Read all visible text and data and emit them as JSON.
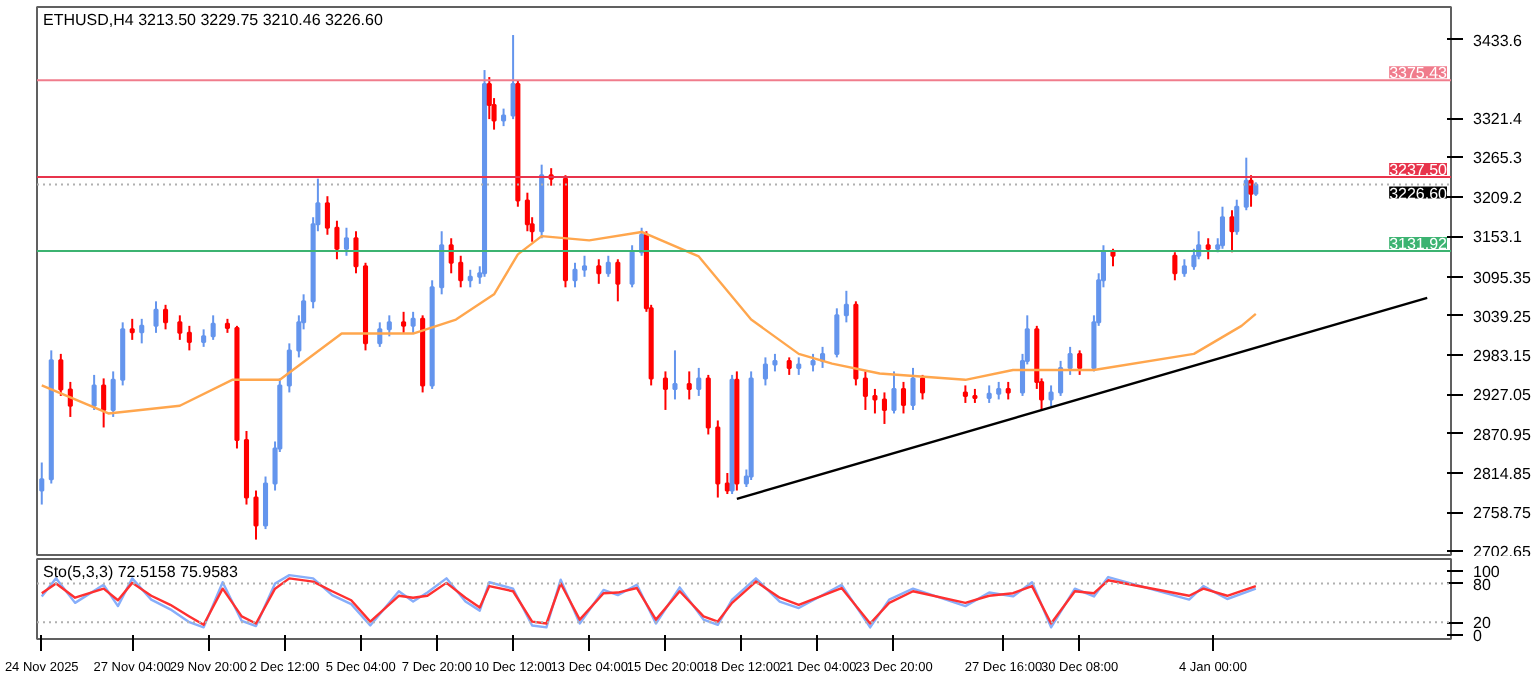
{
  "chart_data": [
    {
      "type": "candlestick",
      "title": "ETHUSD,H4 3213.50 3229.75 3210.46 3226.60",
      "x": [
        "2025-11-24T00:00",
        "2025-11-24T08:00",
        "2025-11-24T16:00",
        "2025-11-25T00:00",
        "2025-11-25T20:00",
        "2025-11-26T04:00",
        "2025-11-26T12:00",
        "2025-11-26T20:00",
        "2025-11-27T04:00",
        "2025-11-27T12:00",
        "2025-11-28T00:00",
        "2025-11-28T08:00",
        "2025-11-28T20:00",
        "2025-11-29T04:00",
        "2025-11-29T16:00",
        "2025-11-30T00:00",
        "2025-11-30T12:00",
        "2025-11-30T20:00",
        "2025-12-01T04:00",
        "2025-12-01T12:00",
        "2025-12-01T20:00",
        "2025-12-02T04:00",
        "2025-12-02T08:00",
        "2025-12-02T16:00",
        "2025-12-03T00:00",
        "2025-12-03T04:00",
        "2025-12-03T12:00",
        "2025-12-03T16:00",
        "2025-12-04T00:00",
        "2025-12-04T08:00",
        "2025-12-04T16:00",
        "2025-12-05T00:00",
        "2025-12-05T08:00",
        "2025-12-05T20:00",
        "2025-12-06T04:00",
        "2025-12-06T16:00",
        "2025-12-07T00:00",
        "2025-12-07T08:00",
        "2025-12-07T16:00",
        "2025-12-08T00:00",
        "2025-12-08T08:00",
        "2025-12-08T16:00",
        "2025-12-09T00:00",
        "2025-12-09T08:00",
        "2025-12-09T12:00",
        "2025-12-09T16:00",
        "2025-12-09T20:00",
        "2025-12-10T04:00",
        "2025-12-10T12:00",
        "2025-12-10T16:00",
        "2025-12-11T00:00",
        "2025-12-11T04:00",
        "2025-12-11T12:00",
        "2025-12-11T20:00",
        "2025-12-12T08:00",
        "2025-12-12T16:00",
        "2025-12-13T00:00",
        "2025-12-13T12:00",
        "2025-12-13T20:00",
        "2025-12-14T04:00",
        "2025-12-14T16:00",
        "2025-12-15T00:00",
        "2025-12-15T04:00",
        "2025-12-15T08:00",
        "2025-12-15T20:00",
        "2025-12-16T04:00",
        "2025-12-16T16:00",
        "2025-12-17T00:00",
        "2025-12-17T08:00",
        "2025-12-17T16:00",
        "2025-12-18T00:00",
        "2025-12-18T04:00",
        "2025-12-18T08:00",
        "2025-12-18T16:00",
        "2025-12-18T20:00",
        "2025-12-19T08:00",
        "2025-12-19T16:00",
        "2025-12-20T04:00",
        "2025-12-20T12:00",
        "2025-12-21T00:00",
        "2025-12-21T08:00",
        "2025-12-21T20:00",
        "2025-12-22T04:00",
        "2025-12-22T12:00",
        "2025-12-22T20:00",
        "2025-12-23T04:00",
        "2025-12-23T12:00",
        "2025-12-23T20:00",
        "2025-12-24T04:00",
        "2025-12-24T12:00",
        "2025-12-24T20:00",
        "2025-12-26T08:00",
        "2025-12-26T16:00",
        "2025-12-27T04:00",
        "2025-12-27T12:00",
        "2025-12-27T20:00",
        "2025-12-28T08:00",
        "2025-12-28T12:00",
        "2025-12-28T20:00",
        "2025-12-29T00:00",
        "2025-12-29T08:00",
        "2025-12-29T16:00",
        "2025-12-30T00:00",
        "2025-12-30T08:00",
        "2025-12-30T20:00",
        "2025-12-31T00:00",
        "2025-12-31T04:00",
        "2025-12-31T12:00",
        "2026-01-02T16:00",
        "2026-01-03T00:00",
        "2026-01-03T08:00",
        "2026-01-03T12:00",
        "2026-01-03T20:00",
        "2026-01-04T04:00",
        "2026-01-04T08:00",
        "2026-01-04T16:00",
        "2026-01-04T20:00",
        "2026-01-05T04:00",
        "2026-01-05T08:00",
        "2026-01-05T12:00"
      ],
      "ohlc": [
        [
          2790,
          2830,
          2770,
          2806
        ],
        [
          2806,
          2990,
          2800,
          2976
        ],
        [
          2976,
          2985,
          2925,
          2934
        ],
        [
          2934,
          2945,
          2895,
          2911
        ],
        [
          2911,
          2955,
          2905,
          2940
        ],
        [
          2940,
          2950,
          2880,
          2905
        ],
        [
          2905,
          2960,
          2895,
          2948
        ],
        [
          2948,
          3030,
          2940,
          3020
        ],
        [
          3020,
          3035,
          3005,
          3016
        ],
        [
          3016,
          3035,
          3000,
          3025
        ],
        [
          3025,
          3060,
          3015,
          3048
        ],
        [
          3048,
          3055,
          3020,
          3030
        ],
        [
          3030,
          3040,
          3005,
          3015
        ],
        [
          3015,
          3025,
          2990,
          3002
        ],
        [
          3002,
          3020,
          2995,
          3010
        ],
        [
          3010,
          3040,
          3005,
          3028
        ],
        [
          3028,
          3035,
          3015,
          3022
        ],
        [
          3022,
          3025,
          2850,
          2862
        ],
        [
          2862,
          2875,
          2770,
          2780
        ],
        [
          2780,
          2790,
          2720,
          2740
        ],
        [
          2740,
          2810,
          2735,
          2800
        ],
        [
          2800,
          2860,
          2790,
          2850
        ],
        [
          2850,
          2950,
          2845,
          2940
        ],
        [
          2940,
          3000,
          2930,
          2990
        ],
        [
          2990,
          3040,
          2980,
          3030
        ],
        [
          3030,
          3070,
          3020,
          3060
        ],
        [
          3060,
          3180,
          3050,
          3170
        ],
        [
          3170,
          3235,
          3160,
          3200
        ],
        [
          3200,
          3210,
          3155,
          3165
        ],
        [
          3165,
          3175,
          3120,
          3135
        ],
        [
          3135,
          3165,
          3125,
          3150
        ],
        [
          3150,
          3160,
          3100,
          3110
        ],
        [
          3110,
          3115,
          2990,
          3000
        ],
        [
          3000,
          3030,
          2995,
          3020
        ],
        [
          3020,
          3040,
          3010,
          3030
        ],
        [
          3030,
          3045,
          3015,
          3025
        ],
        [
          3025,
          3045,
          3015,
          3035
        ],
        [
          3035,
          3040,
          2930,
          2940
        ],
        [
          2940,
          3090,
          2935,
          3080
        ],
        [
          3080,
          3160,
          3070,
          3140
        ],
        [
          3140,
          3150,
          3100,
          3115
        ],
        [
          3115,
          3125,
          3080,
          3090
        ],
        [
          3090,
          3105,
          3080,
          3095
        ],
        [
          3095,
          3110,
          3085,
          3100
        ],
        [
          3100,
          3390,
          3095,
          3370
        ],
        [
          3370,
          3380,
          3320,
          3340
        ],
        [
          3340,
          3350,
          3305,
          3318
        ],
        [
          3318,
          3335,
          3310,
          3325
        ],
        [
          3325,
          3440,
          3320,
          3370
        ],
        [
          3370,
          3375,
          3195,
          3204
        ],
        [
          3204,
          3215,
          3160,
          3170
        ],
        [
          3170,
          3180,
          3145,
          3160
        ],
        [
          3160,
          3255,
          3150,
          3240
        ],
        [
          3240,
          3250,
          3225,
          3235
        ],
        [
          3235,
          3240,
          3080,
          3090
        ],
        [
          3090,
          3115,
          3080,
          3105
        ],
        [
          3105,
          3125,
          3095,
          3110
        ],
        [
          3110,
          3120,
          3085,
          3100
        ],
        [
          3100,
          3125,
          3095,
          3115
        ],
        [
          3115,
          3120,
          3060,
          3085
        ],
        [
          3085,
          3140,
          3080,
          3130
        ],
        [
          3130,
          3165,
          3125,
          3155
        ],
        [
          3155,
          3160,
          3045,
          3050
        ],
        [
          3050,
          3055,
          2940,
          2950
        ],
        [
          2950,
          2960,
          2905,
          2935
        ],
        [
          2935,
          2990,
          2920,
          2942
        ],
        [
          2942,
          2960,
          2920,
          2935
        ],
        [
          2935,
          2965,
          2925,
          2950
        ],
        [
          2950,
          2955,
          2870,
          2880
        ],
        [
          2880,
          2890,
          2780,
          2800
        ],
        [
          2800,
          2815,
          2785,
          2790
        ],
        [
          2790,
          2955,
          2785,
          2948
        ],
        [
          2948,
          2960,
          2790,
          2800
        ],
        [
          2800,
          2820,
          2795,
          2810
        ],
        [
          2810,
          2960,
          2805,
          2950
        ],
        [
          2950,
          2980,
          2940,
          2970
        ],
        [
          2970,
          2985,
          2960,
          2975
        ],
        [
          2975,
          2980,
          2955,
          2965
        ],
        [
          2965,
          2980,
          2955,
          2970
        ],
        [
          2970,
          2985,
          2960,
          2975
        ],
        [
          2975,
          2995,
          2965,
          2985
        ],
        [
          2985,
          3050,
          2980,
          3040
        ],
        [
          3040,
          3075,
          3030,
          3055
        ],
        [
          3055,
          3060,
          2940,
          2950
        ],
        [
          2950,
          2960,
          2905,
          2925
        ],
        [
          2925,
          2935,
          2900,
          2920
        ],
        [
          2920,
          2930,
          2885,
          2905
        ],
        [
          2905,
          2960,
          2900,
          2935
        ],
        [
          2935,
          2945,
          2900,
          2912
        ],
        [
          2912,
          2965,
          2905,
          2950
        ],
        [
          2950,
          2955,
          2920,
          2930
        ],
        [
          2930,
          2940,
          2915,
          2925
        ],
        [
          2925,
          2935,
          2915,
          2922
        ],
        [
          2922,
          2940,
          2915,
          2928
        ],
        [
          2928,
          2945,
          2920,
          2935
        ],
        [
          2935,
          2945,
          2920,
          2930
        ],
        [
          2930,
          2985,
          2925,
          2975
        ],
        [
          2975,
          3040,
          2970,
          3020
        ],
        [
          3020,
          3025,
          2935,
          2945
        ],
        [
          2945,
          2950,
          2905,
          2920
        ],
        [
          2920,
          2940,
          2910,
          2930
        ],
        [
          2930,
          2975,
          2925,
          2965
        ],
        [
          2965,
          2995,
          2955,
          2985
        ],
        [
          2985,
          2990,
          2955,
          2965
        ],
        [
          2965,
          3040,
          2960,
          3030
        ],
        [
          3030,
          3100,
          3025,
          3090
        ],
        [
          3090,
          3140,
          3080,
          3130
        ],
        [
          3130,
          3135,
          3110,
          3125
        ],
        [
          3125,
          3130,
          3090,
          3100
        ],
        [
          3100,
          3120,
          3095,
          3110
        ],
        [
          3110,
          3135,
          3105,
          3125
        ],
        [
          3125,
          3160,
          3120,
          3140
        ],
        [
          3140,
          3150,
          3120,
          3135
        ],
        [
          3135,
          3150,
          3130,
          3140
        ],
        [
          3140,
          3195,
          3135,
          3180
        ],
        [
          3180,
          3190,
          3130,
          3160
        ],
        [
          3160,
          3205,
          3155,
          3195
        ],
        [
          3195,
          3265,
          3190,
          3232
        ],
        [
          3232,
          3240,
          3195,
          3213.5
        ],
        [
          3213.5,
          3229.75,
          3210.46,
          3226.6
        ]
      ],
      "series": [
        {
          "type": "line",
          "color": "#ffa64d",
          "x": [
            "2025-11-24T00:00",
            "2025-11-26T08:00",
            "2025-11-28T20:00",
            "2025-11-30T16:00",
            "2025-12-02T08:00",
            "2025-12-04T12:00",
            "2025-12-07T00:00",
            "2025-12-08T12:00",
            "2025-12-09T20:00",
            "2025-12-10T16:00",
            "2025-12-11T12:00",
            "2025-12-13T04:00",
            "2025-12-15T00:00",
            "2025-12-17T00:00",
            "2025-12-18T20:00",
            "2025-12-20T12:00",
            "2025-12-21T16:00",
            "2025-12-23T08:00",
            "2025-12-26T08:00",
            "2025-12-28T00:00",
            "2025-12-30T20:00",
            "2026-01-03T08:00",
            "2026-01-05T00:00",
            "2026-01-05T12:00"
          ],
          "values": [
            2940,
            2900,
            2911,
            2948,
            2948,
            3014,
            3014,
            3034,
            3070,
            3127,
            3153,
            3147,
            3159,
            3124,
            3034,
            2985,
            2971,
            2957,
            2948,
            2962,
            2962,
            2985,
            3025,
            3042
          ]
        },
        {
          "type": "line",
          "color": "#000000",
          "x": [
            "2025-12-18T08:00",
            "2026-01-11T12:00"
          ],
          "values": [
            2778,
            3065
          ]
        }
      ],
      "ref_lines": [
        {
          "axis": "y",
          "value": 3375.43,
          "label": "3375.43",
          "color": "#f07c8c"
        },
        {
          "axis": "y",
          "value": 3237.5,
          "label": "3237.50",
          "color": "#e8344c"
        },
        {
          "axis": "y",
          "value": 3226.6,
          "label": "3226.60",
          "color": "#b0b0b0",
          "line_style": "dotted"
        },
        {
          "axis": "y",
          "value": 3131.92,
          "label": "3131.92",
          "color": "#3cb371"
        }
      ],
      "xlim": [
        "2025-11-23T20:00",
        "2026-01-12T08:00"
      ],
      "ylim": [
        2698,
        3480
      ],
      "yticks": [
        2702.65,
        2758.75,
        2814.85,
        2870.95,
        2927.05,
        2983.15,
        3039.25,
        3095.35,
        3153.1,
        3209.2,
        3265.3,
        3321.4,
        3433.6
      ],
      "tick_labels": "y",
      "grid": false
    },
    {
      "type": "line",
      "title": "Sto(5,3,3) 72.5158 75.9583",
      "x": [
        "2025-11-24T00:00",
        "2025-11-24T12:00",
        "2025-11-25T04:00",
        "2025-11-26T04:00",
        "2025-11-26T16:00",
        "2025-11-27T04:00",
        "2025-11-27T20:00",
        "2025-11-28T12:00",
        "2025-11-29T04:00",
        "2025-11-29T16:00",
        "2025-11-30T08:00",
        "2025-12-01T00:00",
        "2025-12-01T12:00",
        "2025-12-02T04:00",
        "2025-12-02T16:00",
        "2025-12-03T12:00",
        "2025-12-04T04:00",
        "2025-12-04T20:00",
        "2025-12-05T12:00",
        "2025-12-06T12:00",
        "2025-12-07T00:00",
        "2025-12-07T12:00",
        "2025-12-08T04:00",
        "2025-12-08T20:00",
        "2025-12-09T08:00",
        "2025-12-09T16:00",
        "2025-12-10T12:00",
        "2025-12-11T04:00",
        "2025-12-11T16:00",
        "2025-12-12T04:00",
        "2025-12-12T20:00",
        "2025-12-13T16:00",
        "2025-12-14T04:00",
        "2025-12-14T20:00",
        "2025-12-15T12:00",
        "2025-12-16T08:00",
        "2025-12-17T04:00",
        "2025-12-17T16:00",
        "2025-12-18T04:00",
        "2025-12-19T00:00",
        "2025-12-19T20:00",
        "2025-12-20T12:00",
        "2025-12-22T00:00",
        "2025-12-23T00:00",
        "2025-12-23T16:00",
        "2025-12-24T12:00",
        "2025-12-26T08:00",
        "2025-12-27T04:00",
        "2025-12-28T00:00",
        "2025-12-28T16:00",
        "2025-12-29T08:00",
        "2025-12-30T04:00",
        "2025-12-30T20:00",
        "2025-12-31T08:00",
        "2026-01-03T04:00",
        "2026-01-03T16:00",
        "2026-01-04T12:00",
        "2026-01-05T12:00"
      ],
      "series": [
        {
          "color": "#87aefa",
          "values": [
            60,
            88,
            50,
            78,
            45,
            88,
            55,
            40,
            20,
            12,
            82,
            22,
            14,
            80,
            93,
            88,
            62,
            48,
            15,
            68,
            52,
            66,
            88,
            52,
            38,
            82,
            72,
            15,
            12,
            86,
            18,
            70,
            62,
            78,
            18,
            74,
            24,
            16,
            55,
            88,
            52,
            42,
            78,
            12,
            55,
            72,
            45,
            66,
            60,
            82,
            12,
            72,
            60,
            90,
            55,
            76,
            56,
            72
          ]
        },
        {
          "color": "#ff3030",
          "values": [
            65,
            80,
            58,
            72,
            54,
            81,
            61,
            47,
            29,
            16,
            72,
            29,
            18,
            72,
            88,
            83,
            68,
            54,
            21,
            61,
            58,
            61,
            81,
            58,
            43,
            76,
            68,
            21,
            18,
            80,
            24,
            65,
            66,
            73,
            24,
            68,
            29,
            21,
            50,
            83,
            58,
            47,
            73,
            18,
            50,
            68,
            50,
            61,
            65,
            76,
            18,
            68,
            65,
            85,
            61,
            72,
            61,
            76
          ]
        }
      ],
      "ref_lines": [
        {
          "axis": "y",
          "value": 80,
          "color": "#b0b0b0",
          "line_style": "dotted"
        },
        {
          "axis": "y",
          "value": 20,
          "color": "#b0b0b0",
          "line_style": "dotted"
        }
      ],
      "xlim": [
        "2025-11-23T20:00",
        "2026-01-12T08:00"
      ],
      "ylim": [
        -6,
        118
      ],
      "yticks": [
        0,
        20,
        80,
        100
      ],
      "xticks": [
        {
          "value": "2025-11-24T00:00",
          "label": "24 Nov 2025"
        },
        {
          "value": "2025-11-27T04:00",
          "label": "27 Nov 04:00"
        },
        {
          "value": "2025-11-29T20:00",
          "label": "29 Nov 20:00"
        },
        {
          "value": "2025-12-02T12:00",
          "label": "2 Dec 12:00"
        },
        {
          "value": "2025-12-05T04:00",
          "label": "5 Dec 04:00"
        },
        {
          "value": "2025-12-07T20:00",
          "label": "7 Dec 20:00"
        },
        {
          "value": "2025-12-10T12:00",
          "label": "10 Dec 12:00"
        },
        {
          "value": "2025-12-13T04:00",
          "label": "13 Dec 04:00"
        },
        {
          "value": "2025-12-15T20:00",
          "label": "15 Dec 20:00"
        },
        {
          "value": "2025-12-18T12:00",
          "label": "18 Dec 12:00"
        },
        {
          "value": "2025-12-21T04:00",
          "label": "21 Dec 04:00"
        },
        {
          "value": "2025-12-23T20:00",
          "label": "23 Dec 20:00"
        },
        {
          "value": "2025-12-27T16:00",
          "label": "27 Dec 16:00"
        },
        {
          "value": "2025-12-30T08:00",
          "label": "30 Dec 08:00"
        },
        {
          "value": "2026-01-04T00:00",
          "label": "4 Jan 00:00"
        }
      ],
      "grid": false
    }
  ]
}
